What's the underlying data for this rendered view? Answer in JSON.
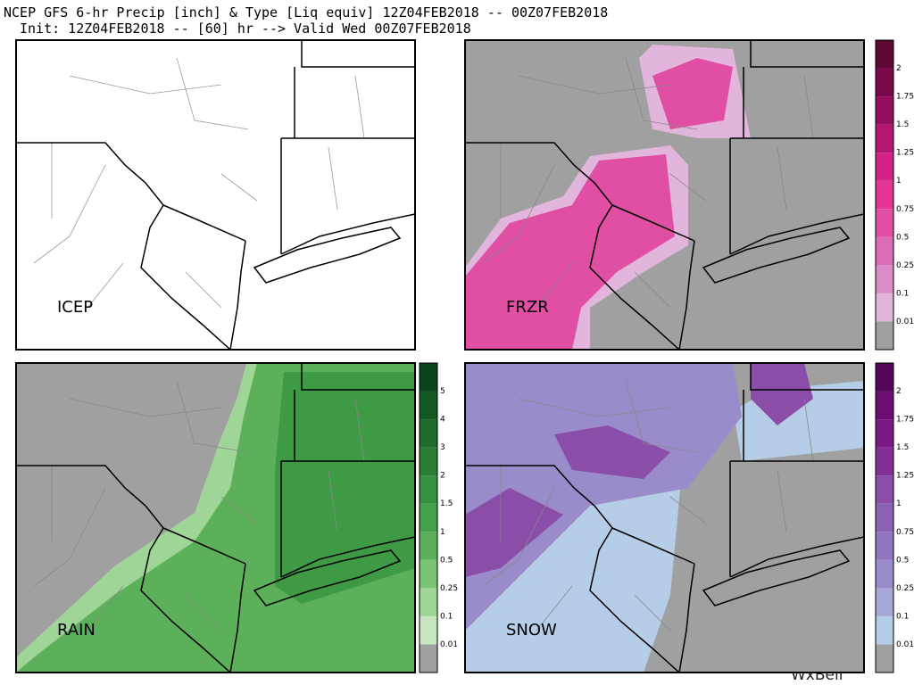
{
  "header": {
    "line1": "NCEP GFS 6-hr Precip [inch] & Type [Liq equiv] 12Z04FEB2018 -- 00Z07FEB2018",
    "line2": "Init: 12Z04FEB2018 -- [60] hr --> Valid Wed 00Z07FEB2018"
  },
  "panels": [
    {
      "label": "ICEP"
    },
    {
      "label": "FRZR",
      "colorbar": [
        "0.01",
        "0.1",
        "0.25",
        "0.5",
        "0.75",
        "1",
        "1.25",
        "1.5",
        "1.75",
        "2"
      ]
    },
    {
      "label": "RAIN",
      "colorbar": [
        "0.01",
        "0.1",
        "0.25",
        "0.5",
        "1",
        "1.5",
        "2",
        "3",
        "4",
        "5"
      ]
    },
    {
      "label": "SNOW",
      "colorbar": [
        "0.01",
        "0.1",
        "0.25",
        "0.5",
        "0.75",
        "1",
        "1.25",
        "1.5",
        "1.75",
        "2"
      ]
    }
  ],
  "watermark": "WxBell"
}
